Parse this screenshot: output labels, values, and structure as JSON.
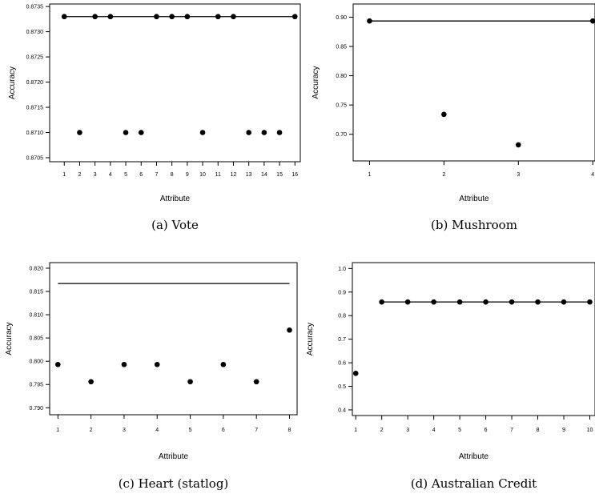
{
  "chart_data": [
    {
      "type": "scatter",
      "caption": "(a)  Vote",
      "xlabel": "Attribute",
      "ylabel": "Accuracy",
      "x_ticks": [
        1,
        2,
        3,
        4,
        5,
        6,
        7,
        8,
        9,
        10,
        11,
        12,
        13,
        14,
        15,
        16
      ],
      "y_ticks": [
        "0.8705",
        "0.8710",
        "0.8715",
        "0.8720",
        "0.8725",
        "0.8730",
        "0.8735"
      ],
      "xlim": [
        0.05,
        16.35
      ],
      "ylim": [
        0.87042,
        0.87355
      ],
      "points": [
        {
          "x": 1,
          "y": 0.8733
        },
        {
          "x": 2,
          "y": 0.871
        },
        {
          "x": 3,
          "y": 0.8733
        },
        {
          "x": 4,
          "y": 0.8733
        },
        {
          "x": 5,
          "y": 0.871
        },
        {
          "x": 6,
          "y": 0.871
        },
        {
          "x": 7,
          "y": 0.8733
        },
        {
          "x": 8,
          "y": 0.8733
        },
        {
          "x": 9,
          "y": 0.8733
        },
        {
          "x": 10,
          "y": 0.871
        },
        {
          "x": 11,
          "y": 0.8733
        },
        {
          "x": 12,
          "y": 0.8733
        },
        {
          "x": 13,
          "y": 0.871
        },
        {
          "x": 14,
          "y": 0.871
        },
        {
          "x": 15,
          "y": 0.871
        },
        {
          "x": 16,
          "y": 0.8733
        }
      ],
      "reference_line": {
        "x_start": 1,
        "x_end": 16,
        "y": 0.8733
      }
    },
    {
      "type": "scatter",
      "caption": "(b)  Mushroom",
      "xlabel": "Attribute",
      "ylabel": "Accuracy",
      "x_ticks": [
        1,
        2,
        3,
        4
      ],
      "y_ticks": [
        "0.70",
        "0.75",
        "0.80",
        "0.85",
        "0.90"
      ],
      "xlim": [
        0.78,
        4.03
      ],
      "ylim": [
        0.6545,
        0.9225
      ],
      "points": [
        {
          "x": 1,
          "y": 0.8935
        },
        {
          "x": 2,
          "y": 0.734
        },
        {
          "x": 3,
          "y": 0.682
        },
        {
          "x": 4,
          "y": 0.8935
        }
      ],
      "reference_line": {
        "x_start": 1,
        "x_end": 4,
        "y": 0.8935
      }
    },
    {
      "type": "scatter",
      "caption": "(c)  Heart (statlog)",
      "xlabel": "Attribute",
      "ylabel": "Accuracy",
      "x_ticks": [
        1,
        2,
        3,
        4,
        5,
        6,
        7,
        8
      ],
      "y_ticks": [
        "0.790",
        "0.795",
        "0.800",
        "0.805",
        "0.810",
        "0.815",
        "0.820"
      ],
      "xlim": [
        0.75,
        8.23
      ],
      "ylim": [
        0.7885,
        0.8212
      ],
      "points": [
        {
          "x": 1,
          "y": 0.7993
        },
        {
          "x": 2,
          "y": 0.7956
        },
        {
          "x": 3,
          "y": 0.7993
        },
        {
          "x": 4,
          "y": 0.7993
        },
        {
          "x": 5,
          "y": 0.7956
        },
        {
          "x": 6,
          "y": 0.7993
        },
        {
          "x": 7,
          "y": 0.7956
        },
        {
          "x": 8,
          "y": 0.8067
        }
      ],
      "reference_line": {
        "x_start": 1,
        "x_end": 8,
        "y": 0.8167
      }
    },
    {
      "type": "scatter",
      "caption": "(d)  Australian Credit",
      "xlabel": "Attribute",
      "ylabel": "Accuracy",
      "x_ticks": [
        1,
        2,
        3,
        4,
        5,
        6,
        7,
        8,
        9,
        10
      ],
      "y_ticks": [
        "0.4",
        "0.5",
        "0.6",
        "0.7",
        "0.8",
        "0.9",
        "1.0"
      ],
      "xlim": [
        0.87,
        10.2
      ],
      "ylim": [
        0.376,
        1.025
      ],
      "points": [
        {
          "x": 1,
          "y": 0.555
        },
        {
          "x": 2,
          "y": 0.858
        },
        {
          "x": 3,
          "y": 0.858
        },
        {
          "x": 4,
          "y": 0.858
        },
        {
          "x": 5,
          "y": 0.858
        },
        {
          "x": 6,
          "y": 0.858
        },
        {
          "x": 7,
          "y": 0.858
        },
        {
          "x": 8,
          "y": 0.858
        },
        {
          "x": 9,
          "y": 0.858
        },
        {
          "x": 10,
          "y": 0.858
        }
      ],
      "reference_line": {
        "x_start": 2,
        "x_end": 10,
        "y": 0.858
      }
    }
  ]
}
